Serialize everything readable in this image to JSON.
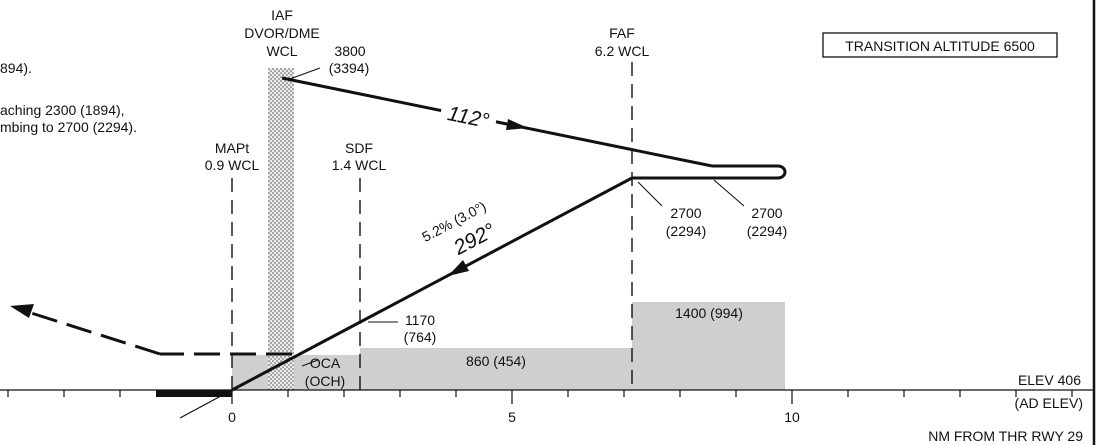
{
  "notes": {
    "line1": "894).",
    "line2": "aching 2300 (1894),",
    "line3": "mbing to 2700 (2294)."
  },
  "fixes": {
    "iaf": {
      "line1": "IAF",
      "line2": "DVOR/DME",
      "line3": "WCL"
    },
    "faf": {
      "line1": "FAF",
      "line2": "6.2 WCL"
    },
    "mapt": {
      "line1": "MAPt",
      "line2": "0.9 WCL"
    },
    "sdf": {
      "line1": "SDF",
      "line2": "1.4 WCL"
    }
  },
  "transition_altitude": "TRANSITION ALTITUDE 6500",
  "altitudes": {
    "iaf_alt": "3800",
    "iaf_height": "(3394)",
    "faf_alt": "2700",
    "faf_height": "(2294)",
    "hold_alt": "2700",
    "hold_height": "(2294)",
    "sdf_alt": "1170",
    "sdf_height": "(764)"
  },
  "tracks": {
    "outbound": "112°",
    "inbound": "292°",
    "gradient": "5.2% (3.0°)"
  },
  "minimums": {
    "seg1": "860 (454)",
    "seg2": "1400 (994)",
    "oca": "OCA",
    "och": "(OCH)"
  },
  "aerodrome": {
    "elev": "ELEV 406",
    "elev_ref": "(AD ELEV)"
  },
  "axis": {
    "ticks": [
      "0",
      "5",
      "10"
    ],
    "caption": "NM FROM THR RWY 29"
  },
  "colors": {
    "ink": "#111111",
    "shade": "#cfcfcf",
    "dme_fill": "#d9d9d9"
  }
}
